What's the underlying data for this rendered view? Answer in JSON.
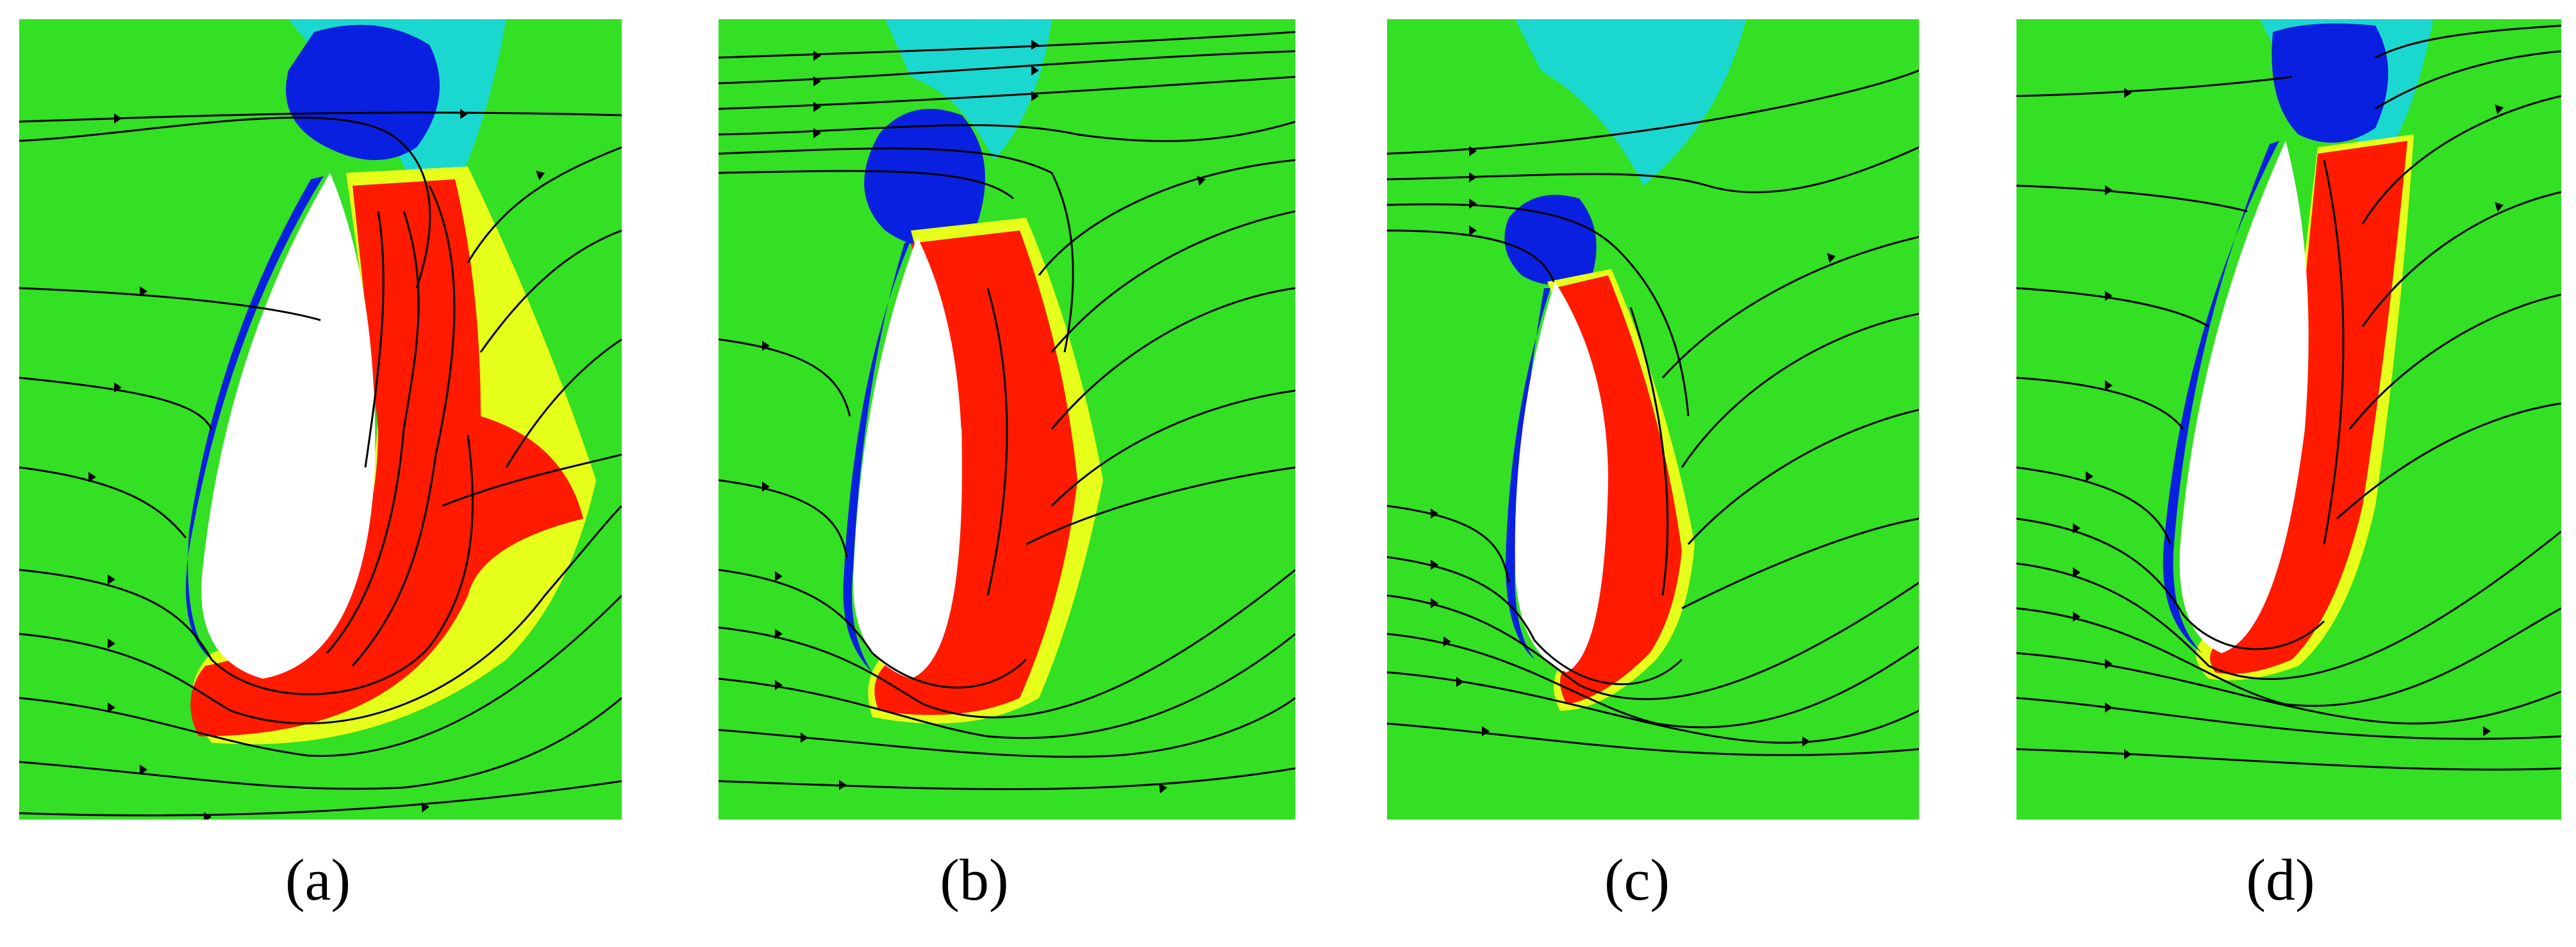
{
  "figure": {
    "colors": {
      "background_field": "#33e024",
      "separation_zone": "#ff1a00",
      "transition_yellow": "#e6ff1a",
      "low_velocity": "#0a20e0",
      "cyan_shade": "#1ad8d0",
      "blade_surface": "#ffffff",
      "streamline": "#000000"
    },
    "panels": [
      {
        "label": "(a)"
      },
      {
        "label": "(b)"
      },
      {
        "label": "(c)"
      },
      {
        "label": "(d)"
      }
    ]
  }
}
